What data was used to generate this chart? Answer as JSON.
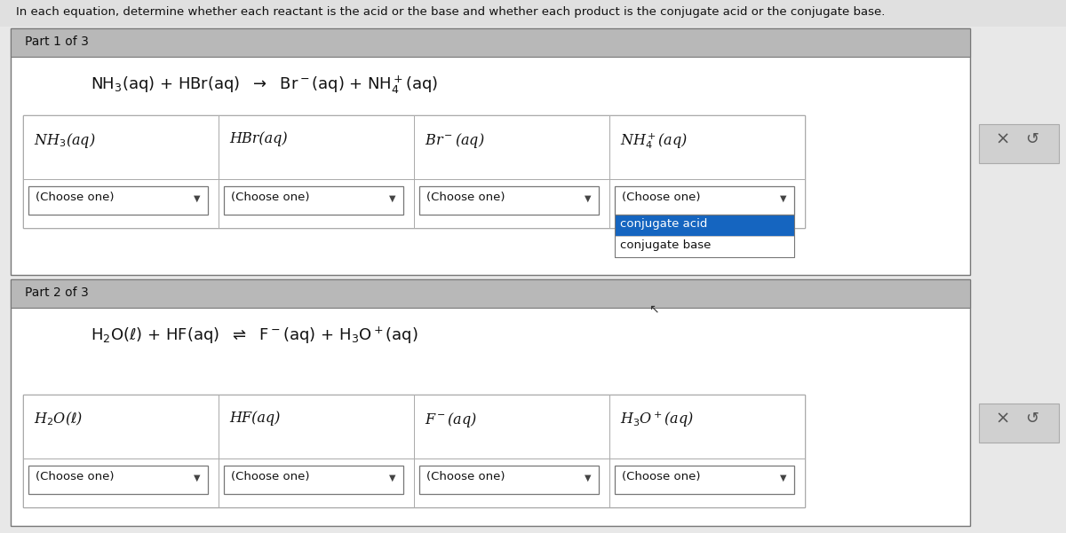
{
  "bg_color": "#e8e8e8",
  "white": "#ffffff",
  "light_gray_bg": "#f0f0f0",
  "header_text": "In each equation, determine whether each reactant is the acid or the base and whether each product is the conjugate acid or the conjugate base.",
  "part1_label": "Part 1 of 3",
  "part2_label": "Part 2 of 3",
  "choose_one": "(Choose one)",
  "dropdown_highlight": "#1565c0",
  "dropdown_highlight_text": "#ffffff",
  "section_header_bg": "#b8b8b8",
  "inner_bg": "#f5f5f5",
  "border_color": "#999999",
  "dark_border": "#777777",
  "text_color": "#111111",
  "btn_bg": "#d0d0d0",
  "btn_border": "#aaaaaa",
  "x_color": "#555555",
  "undo_color": "#555555",
  "table_outer_border": "#888888",
  "row_divider": "#aaaaaa"
}
